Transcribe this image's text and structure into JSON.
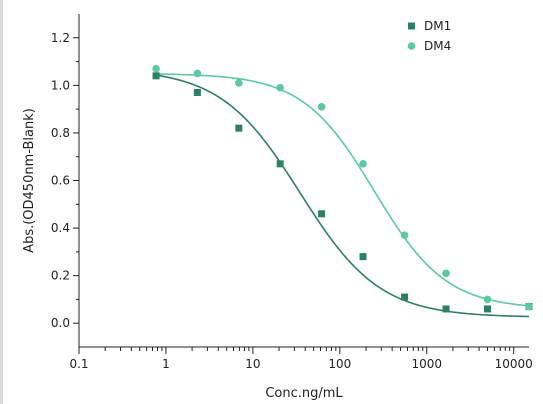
{
  "chart_data": {
    "type": "scatter",
    "title": "",
    "xlabel": "Conc.ng/mL",
    "ylabel": "Abs.(OD450nm-Blank)",
    "x_scale": "log",
    "xlim": [
      0.1,
      15000
    ],
    "ylim": [
      -0.1,
      1.3
    ],
    "x_ticks": [
      0.1,
      1,
      10,
      100,
      1000,
      10000
    ],
    "x_tick_labels": [
      "0.1",
      "1",
      "10",
      "100",
      "1000",
      "10000"
    ],
    "y_ticks": [
      0.0,
      0.2,
      0.4,
      0.6,
      0.8,
      1.0,
      1.2
    ],
    "y_tick_labels": [
      "0.0",
      "0.2",
      "0.4",
      "0.6",
      "0.8",
      "1.0",
      "1.2"
    ],
    "grid": false,
    "legend_position": "top-right",
    "series": [
      {
        "name": "DM1",
        "marker": "square",
        "color": "#2f7f62",
        "x": [
          0.77,
          2.3,
          6.9,
          20.6,
          61.7,
          185,
          556,
          1667,
          5000,
          15000
        ],
        "y": [
          1.04,
          0.97,
          0.82,
          0.67,
          0.46,
          0.28,
          0.11,
          0.06,
          0.06,
          0.07
        ],
        "fit": {
          "top": 1.07,
          "bottom": 0.025,
          "ec50": 35,
          "hill": 0.95
        }
      },
      {
        "name": "DM4",
        "marker": "circle",
        "color": "#5ec7a4",
        "x": [
          0.77,
          2.3,
          6.9,
          20.6,
          61.7,
          185,
          556,
          1667,
          5000,
          15000
        ],
        "y": [
          1.07,
          1.05,
          1.01,
          0.99,
          0.91,
          0.67,
          0.37,
          0.21,
          0.1,
          0.07
        ],
        "fit": {
          "top": 1.05,
          "bottom": 0.06,
          "ec50": 250,
          "hill": 1.05
        }
      }
    ]
  }
}
